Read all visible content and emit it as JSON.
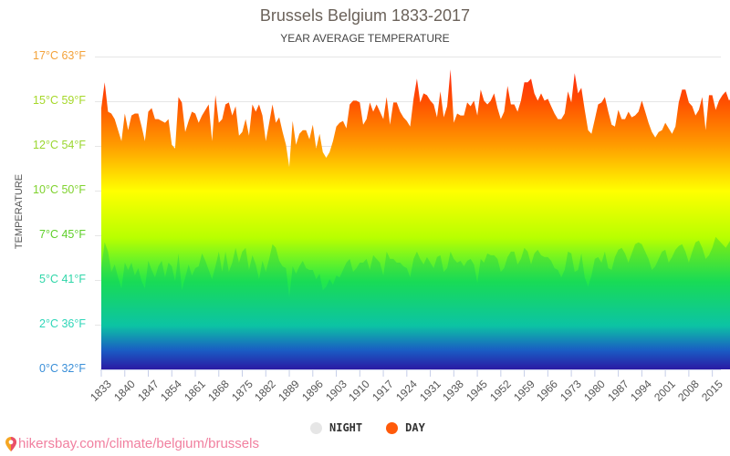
{
  "header": {
    "title": "Brussels Belgium 1833-2017",
    "subtitle": "YEAR AVERAGE TEMPERATURE"
  },
  "axis": {
    "ylabel": "TEMPERATURE",
    "yticks": [
      {
        "label": "17°C 63°F",
        "color": "#f3a23a"
      },
      {
        "label": "15°C 59°F",
        "color": "#a6d82a"
      },
      {
        "label": "12°C 54°F",
        "color": "#9ad62e"
      },
      {
        "label": "10°C 50°F",
        "color": "#7fd22e"
      },
      {
        "label": "7°C 45°F",
        "color": "#5fcf2a"
      },
      {
        "label": "5°C 41°F",
        "color": "#2fd6a8"
      },
      {
        "label": "2°C 36°F",
        "color": "#2fd6b8"
      },
      {
        "label": "0°C 32°F",
        "color": "#3a8fd8"
      }
    ],
    "xticks": [
      "1833",
      "1840",
      "1847",
      "1854",
      "1861",
      "1868",
      "1875",
      "1882",
      "1889",
      "1896",
      "1903",
      "1910",
      "1917",
      "1924",
      "1931",
      "1938",
      "1945",
      "1952",
      "1959",
      "1966",
      "1973",
      "1980",
      "1987",
      "1994",
      "2001",
      "2008",
      "2015"
    ]
  },
  "legend": {
    "night": {
      "label": "NIGHT",
      "color": "#e6e6e6"
    },
    "day": {
      "label": "DAY",
      "color": "#ff5a0a"
    }
  },
  "footer": {
    "link": "hikersbay.com/climate/belgium/brussels",
    "icon": "map-pin-icon"
  },
  "chart_data": {
    "type": "area",
    "title": "Brussels Belgium 1833-2017",
    "subtitle": "YEAR AVERAGE TEMPERATURE",
    "xlabel": "",
    "ylabel": "TEMPERATURE",
    "ylim": [
      0,
      17
    ],
    "yticks_celsius": [
      0,
      2,
      5,
      7,
      10,
      12,
      15,
      17
    ],
    "yticks_fahrenheit": [
      32,
      36,
      41,
      45,
      50,
      54,
      59,
      63
    ],
    "x_start": 1833,
    "x_end": 2017,
    "legend_position": "bottom",
    "grid": true,
    "series": [
      {
        "name": "DAY",
        "color": "#ff5a0a",
        "values": [
          14.2,
          15.6,
          14.0,
          13.9,
          13.6,
          13.0,
          12.4,
          13.9,
          13.0,
          13.8,
          13.9,
          13.9,
          13.2,
          12.4,
          14.0,
          14.2,
          13.6,
          13.6,
          13.5,
          13.4,
          13.6,
          12.2,
          12.0,
          14.8,
          14.5,
          12.9,
          13.5,
          14.0,
          13.9,
          13.4,
          13.8,
          14.1,
          14.4,
          12.4,
          14.9,
          13.4,
          13.6,
          14.4,
          14.5,
          13.8,
          14.3,
          12.7,
          12.9,
          13.6,
          12.7,
          14.4,
          14.0,
          14.4,
          13.8,
          12.4,
          13.4,
          14.4,
          13.4,
          13.7,
          12.9,
          12.2,
          11.0,
          13.5,
          12.2,
          12.8,
          13.0,
          13.0,
          12.5,
          13.3,
          12.0,
          12.8,
          11.8,
          11.5,
          11.8,
          12.4,
          13.2,
          13.4,
          13.5,
          13.1,
          14.4,
          14.6,
          14.6,
          14.5,
          13.3,
          13.6,
          14.5,
          14.0,
          14.4,
          14.0,
          13.6,
          14.8,
          13.3,
          14.5,
          14.5,
          14.0,
          13.7,
          13.5,
          13.2,
          14.7,
          15.8,
          14.5,
          15.0,
          14.9,
          14.6,
          14.4,
          13.7,
          15.1,
          13.7,
          14.3,
          16.3,
          13.4,
          13.9,
          13.8,
          13.8,
          14.5,
          14.3,
          14.6,
          13.8,
          15.2,
          14.6,
          14.4,
          14.6,
          15.0,
          14.2,
          13.6,
          14.0,
          15.4,
          14.4,
          14.4,
          14.0,
          14.6,
          15.6,
          15.6,
          15.8,
          15.0,
          14.6,
          15.0,
          14.6,
          14.7,
          14.3,
          13.9,
          13.6,
          13.6,
          13.9,
          15.1,
          14.5,
          16.1,
          15.0,
          15.3,
          14.1,
          13.0,
          12.8,
          13.6,
          14.4,
          14.5,
          14.8,
          14.0,
          13.3,
          13.2,
          14.1,
          13.6,
          13.6,
          14.0,
          13.7,
          13.8,
          14.0,
          14.6,
          14.0,
          13.4,
          12.9,
          12.6,
          12.9,
          13.0,
          13.4,
          13.1,
          12.8,
          13.2,
          14.5,
          15.2,
          15.2,
          14.5,
          14.3,
          13.8,
          14.1,
          14.8,
          13.0,
          14.9,
          14.9,
          14.1,
          14.6,
          14.9,
          15.1,
          14.6,
          14.9,
          15.2,
          15.4,
          14.6,
          15.0,
          15.3,
          13.9,
          15.1,
          16.0,
          15.1,
          15.3,
          15.6
        ]
      },
      {
        "name": "NIGHT",
        "color": "#e6e6e6",
        "values": [
          5.5,
          6.9,
          6.4,
          5.3,
          5.7,
          5.0,
          4.4,
          5.8,
          5.4,
          5.8,
          5.1,
          5.5,
          4.8,
          4.4,
          5.9,
          5.4,
          5.0,
          5.6,
          5.9,
          5.0,
          5.8,
          5.6,
          4.8,
          6.3,
          4.3,
          5.0,
          5.7,
          5.1,
          5.5,
          5.6,
          6.3,
          5.9,
          5.4,
          4.9,
          5.6,
          6.4,
          5.3,
          6.4,
          5.3,
          5.8,
          6.6,
          5.8,
          6.4,
          6.6,
          5.4,
          6.2,
          5.7,
          4.9,
          5.9,
          5.3,
          6.0,
          6.8,
          6.6,
          5.9,
          5.6,
          5.5,
          3.9,
          5.6,
          5.2,
          5.6,
          5.9,
          5.5,
          5.4,
          5.4,
          4.9,
          5.2,
          4.3,
          4.5,
          4.9,
          4.6,
          5.1,
          5.0,
          5.4,
          5.8,
          6.0,
          5.3,
          5.5,
          5.8,
          5.8,
          6.0,
          5.4,
          6.2,
          6.0,
          5.8,
          5.1,
          6.4,
          6.0,
          6.0,
          5.8,
          5.8,
          5.6,
          5.5,
          5.0,
          6.0,
          6.4,
          6.0,
          5.7,
          6.1,
          5.8,
          5.5,
          6.1,
          6.2,
          5.3,
          5.5,
          6.4,
          6.0,
          5.8,
          5.9,
          5.6,
          5.9,
          6.0,
          5.7,
          4.7,
          6.0,
          5.8,
          6.3,
          6.2,
          6.2,
          6.0,
          5.3,
          5.5,
          6.1,
          6.4,
          6.4,
          5.7,
          6.0,
          6.6,
          6.4,
          5.7,
          6.3,
          6.5,
          6.2,
          6.1,
          6.1,
          5.9,
          5.5,
          5.4,
          5.0,
          5.4,
          6.4,
          6.3,
          5.3,
          5.4,
          6.3,
          5.0,
          4.5,
          5.1,
          6.0,
          6.1,
          5.8,
          6.4,
          5.5,
          5.4,
          6.1,
          6.5,
          6.6,
          6.3,
          5.8,
          6.3,
          6.8,
          6.9,
          6.8,
          6.4,
          6.0,
          5.4,
          5.6,
          6.0,
          6.4,
          6.5,
          5.8,
          6.1,
          6.5,
          6.7,
          6.8,
          6.4,
          5.8,
          6.4,
          6.9,
          7.0,
          6.6,
          6.0,
          6.2,
          6.6,
          7.2,
          7.0,
          6.8,
          6.6,
          6.9,
          7.2,
          7.4,
          7.2,
          6.6,
          7.0,
          7.4,
          7.0,
          6.4,
          7.6,
          6.6,
          6.7,
          7.0
        ]
      }
    ]
  }
}
